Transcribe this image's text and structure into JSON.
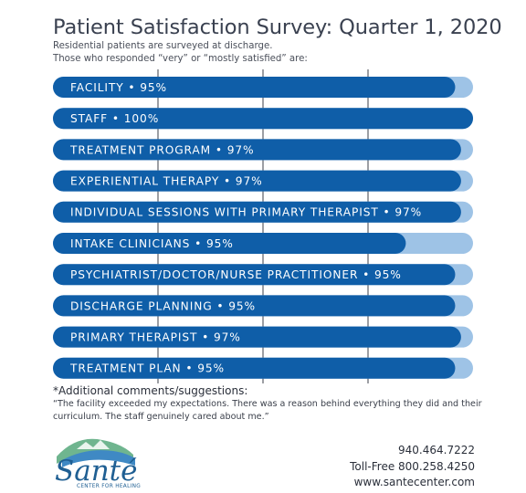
{
  "header": {
    "title": "Patient Satisfaction Survey: Quarter 1, 2020",
    "subtitle_line1": "Residential patients are surveyed at discharge.",
    "subtitle_line2": "Those who responded “very” or “mostly satisfied” are:"
  },
  "chart_data": {
    "type": "bar",
    "orientation": "horizontal",
    "xlim": [
      0,
      100
    ],
    "grid": true,
    "categories": [
      "FACILITY",
      "STAFF",
      "TREATMENT PROGRAM",
      "EXPERIENTIAL THERAPY",
      "INDIVIDUAL SESSIONS WITH PRIMARY THERAPIST",
      "INTAKE CLINICIANS",
      "PSYCHIATRIST/DOCTOR/NURSE PRACTITIONER",
      "DISCHARGE PLANNING",
      "PRIMARY THERAPIST",
      "TREATMENT PLAN"
    ],
    "values": [
      95,
      100,
      97,
      97,
      97,
      95,
      95,
      95,
      97,
      95
    ],
    "labels": [
      "FACILITY • 95%",
      "STAFF • 100%",
      "TREATMENT PROGRAM • 97%",
      "EXPERIENTIAL THERAPY • 97%",
      "INDIVIDUAL SESSIONS WITH PRIMARY THERAPIST • 97%",
      "INTAKE CLINICIANS • 95%",
      "PSYCHIATRIST/DOCTOR/NURSE PRACTITIONER • 95%",
      "DISCHARGE PLANNING • 95%",
      "PRIMARY THERAPIST • 97%",
      "TREATMENT PLAN • 95%"
    ],
    "fill_color": "#0f5ea8",
    "track_color": "#9ec3e6",
    "grid_color": "#3b3f48"
  },
  "comments": {
    "heading": "*Additional comments/suggestions:",
    "text": "“The facility exceeded my expectations. There was a reason behind everything they did and their curriculum. The staff genuinely cared about me.”"
  },
  "contact": {
    "phone": "940.464.7222",
    "toll_free": "Toll-Free 800.258.4250",
    "website": "www.santecenter.com"
  },
  "logo": {
    "name": "Santé",
    "tagline": "CENTER FOR HEALING"
  }
}
